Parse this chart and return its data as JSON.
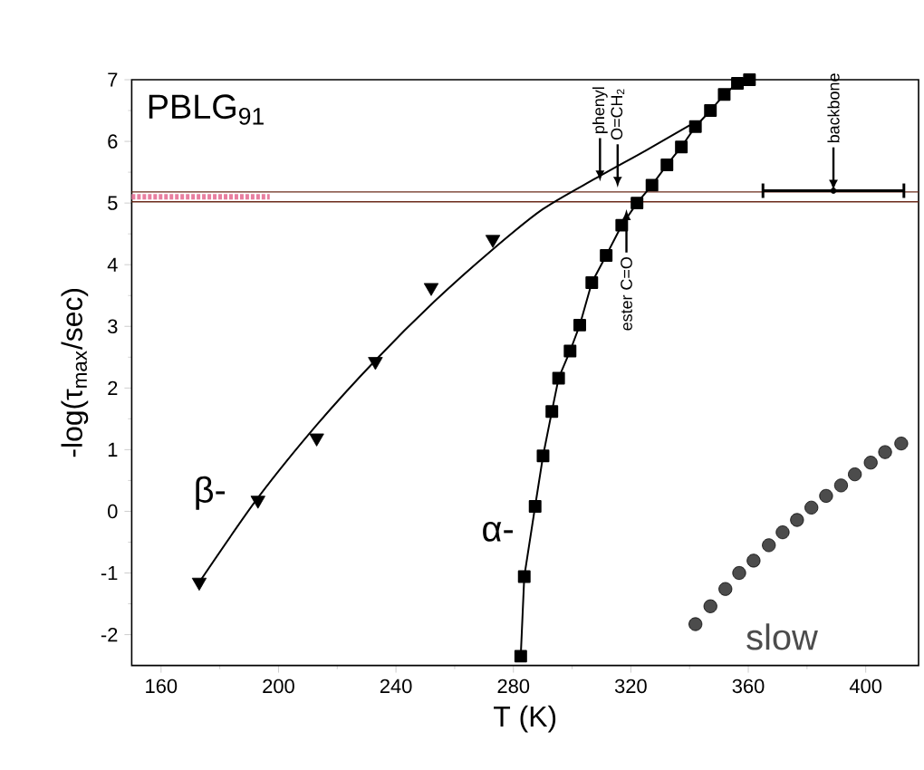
{
  "chart_data": {
    "type": "scatter",
    "xlabel": "T (K)",
    "ylabel": "-log(τ$_{max}$/sec)",
    "xlim": [
      150,
      418
    ],
    "ylim": [
      -2.5,
      7
    ],
    "xticks": [
      160,
      200,
      240,
      280,
      320,
      360,
      400
    ],
    "yticks": [
      -2,
      -1,
      0,
      1,
      2,
      3,
      4,
      5,
      6,
      7
    ],
    "grid": false,
    "series": [
      {
        "name": "β-",
        "marker": "triangle",
        "color": "#000000",
        "x": [
          173,
          193,
          213,
          233,
          252,
          273
        ],
        "values": [
          -1.15,
          0.18,
          1.19,
          2.43,
          3.63,
          4.41
        ]
      },
      {
        "type": "line",
        "marker": "none",
        "color": "#000000",
        "x": [
          173,
          193,
          213,
          233,
          253,
          273,
          290,
          308,
          325,
          340
        ],
        "values": [
          -1.15,
          0.22,
          1.4,
          2.45,
          3.4,
          4.25,
          4.9,
          5.4,
          5.85,
          6.26
        ]
      },
      {
        "name": "α-",
        "type": "line",
        "marker": "square",
        "color": "#000000",
        "x": [
          282.5,
          283.7,
          287.4,
          290.1,
          293.1,
          295.4,
          299.3,
          302.6,
          306.7,
          311.6,
          316.9,
          322.1,
          327.2,
          332.3,
          337.2,
          342.0,
          347.1,
          351.8,
          356.3,
          360.4
        ],
        "values": [
          -2.35,
          -1.06,
          0.08,
          0.9,
          1.62,
          2.16,
          2.6,
          3.02,
          3.71,
          4.15,
          4.64,
          5.0,
          5.29,
          5.62,
          5.91,
          6.24,
          6.5,
          6.76,
          6.94,
          7.0
        ]
      },
      {
        "name": "slow",
        "marker": "circle",
        "color": "#4c4c4c",
        "x": [
          342.0,
          347.1,
          352.2,
          356.9,
          361.8,
          367.0,
          371.7,
          376.6,
          381.5,
          386.5,
          391.6,
          396.3,
          401.7,
          406.6,
          412.1
        ],
        "values": [
          -1.83,
          -1.54,
          -1.26,
          -1.0,
          -0.8,
          -0.55,
          -0.34,
          -0.14,
          0.06,
          0.25,
          0.42,
          0.6,
          0.79,
          0.96,
          1.1
        ]
      },
      {
        "type": "line",
        "marker": "none",
        "line_style": "dashed",
        "color": "#e87fa0",
        "x": [
          150,
          197
        ],
        "values": [
          5.1,
          5.1
        ]
      },
      {
        "type": "scatter",
        "marker": "circle",
        "color": "#000000",
        "x": [
          389
        ],
        "values": [
          5.2
        ],
        "xerrors": [
          [
            365,
            413
          ]
        ]
      }
    ],
    "ref_lines": [
      {
        "axis": "y",
        "value": 5.02,
        "color": "#6b2a1a"
      },
      {
        "axis": "y",
        "value": 5.18,
        "color": "#6b2a1a"
      }
    ],
    "annotations": [
      "PBLG$_{91}$",
      {
        "text": "phenyl",
        "x": 309.5,
        "y": 5.35
      },
      {
        "text": "O=CH$_{2}$",
        "x": 315.5,
        "y": 5.25
      },
      {
        "text": "ester C=O",
        "x": 318.5,
        "y": 4.9
      },
      {
        "text": "backbone",
        "x": 389,
        "y": 5.2
      }
    ]
  }
}
